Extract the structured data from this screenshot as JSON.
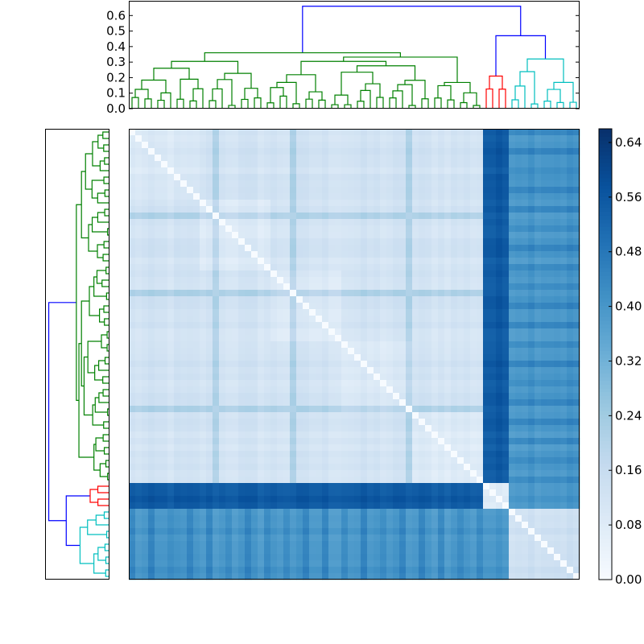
{
  "chart_data": [
    {
      "type": "heatmap",
      "title": "",
      "n": 70,
      "colorscale": [
        "#f7fbff",
        "#deebf7",
        "#c6dbef",
        "#9ecae1",
        "#6baed6",
        "#4292c6",
        "#2171b5",
        "#08519c",
        "#08306b"
      ],
      "vmin": 0.0,
      "vmax": 0.66,
      "row_order": "same as dendrogram leaf order; rows 0-54 green cluster, 55-58 red cluster, 59-69 cyan cluster",
      "notable_rows": {
        "green_cluster_rows": [
          0,
          54
        ],
        "red_cluster_rows": [
          55,
          58
        ],
        "cyan_cluster_rows": [
          59,
          69
        ],
        "highlight_rows_in_green": [
          13,
          25,
          43
        ],
        "diagonal_value": 0.0
      },
      "approx_block_means": {
        "green_green": 0.12,
        "green_red": 0.55,
        "green_cyan": 0.4,
        "red_red": 0.08,
        "red_cyan": 0.4,
        "cyan_cyan": 0.15
      }
    },
    {
      "type": "dendrogram",
      "orientation": "top",
      "y_ticks": [
        "0.0",
        "0.1",
        "0.2",
        "0.3",
        "0.4",
        "0.5",
        "0.6"
      ],
      "ylim": [
        0.0,
        0.7
      ],
      "leaf_count": 70,
      "clusters": [
        {
          "color": "#008000",
          "leaves": 55,
          "height": 0.36
        },
        {
          "color": "#ff0000",
          "leaves": 4,
          "height": 0.21
        },
        {
          "color": "#00bfbf",
          "leaves": 11,
          "height": 0.32
        }
      ],
      "link_color": "#0000ff",
      "root_height": 0.66,
      "upper_merge_height": 0.47
    },
    {
      "type": "dendrogram",
      "orientation": "left",
      "mirrors": "top dendrogram"
    },
    {
      "type": "colorbar",
      "ticks": [
        "0.00",
        "0.08",
        "0.16",
        "0.24",
        "0.32",
        "0.40",
        "0.48",
        "0.56",
        "0.64"
      ],
      "range": [
        0.0,
        0.66
      ]
    }
  ]
}
